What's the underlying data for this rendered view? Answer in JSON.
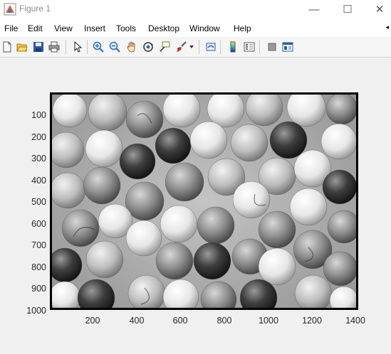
{
  "window": {
    "title": "Figure 1",
    "minimize_glyph": "—",
    "maximize_glyph": "☐",
    "close_glyph": "✕"
  },
  "menu": {
    "items": [
      "File",
      "Edit",
      "View",
      "Insert",
      "Tools",
      "Desktop",
      "Window",
      "Help"
    ],
    "overflow_glyph": "◂"
  },
  "toolbar": {
    "icons": [
      "new-figure-icon",
      "open-file-icon",
      "save-icon",
      "print-icon",
      "pointer-icon",
      "zoom-in-icon",
      "zoom-out-icon",
      "pan-icon",
      "rotate-3d-icon",
      "data-cursor-icon",
      "brush-icon",
      "dropdown-arrow-icon",
      "link-plot-icon",
      "insert-colorbar-icon",
      "insert-legend-icon",
      "hide-plot-tools-icon",
      "show-plot-tools-icon"
    ]
  },
  "axes": {
    "y_ticks": [
      "100",
      "200",
      "300",
      "400",
      "500",
      "600",
      "700",
      "800",
      "900",
      "1000"
    ],
    "x_ticks": [
      "200",
      "400",
      "600",
      "800",
      "1000",
      "1200",
      "1400"
    ]
  },
  "image": {
    "description_icon": "grayscale-marbles-image",
    "colors": {
      "background": "#a8a8a8",
      "frame": "#000000"
    }
  }
}
